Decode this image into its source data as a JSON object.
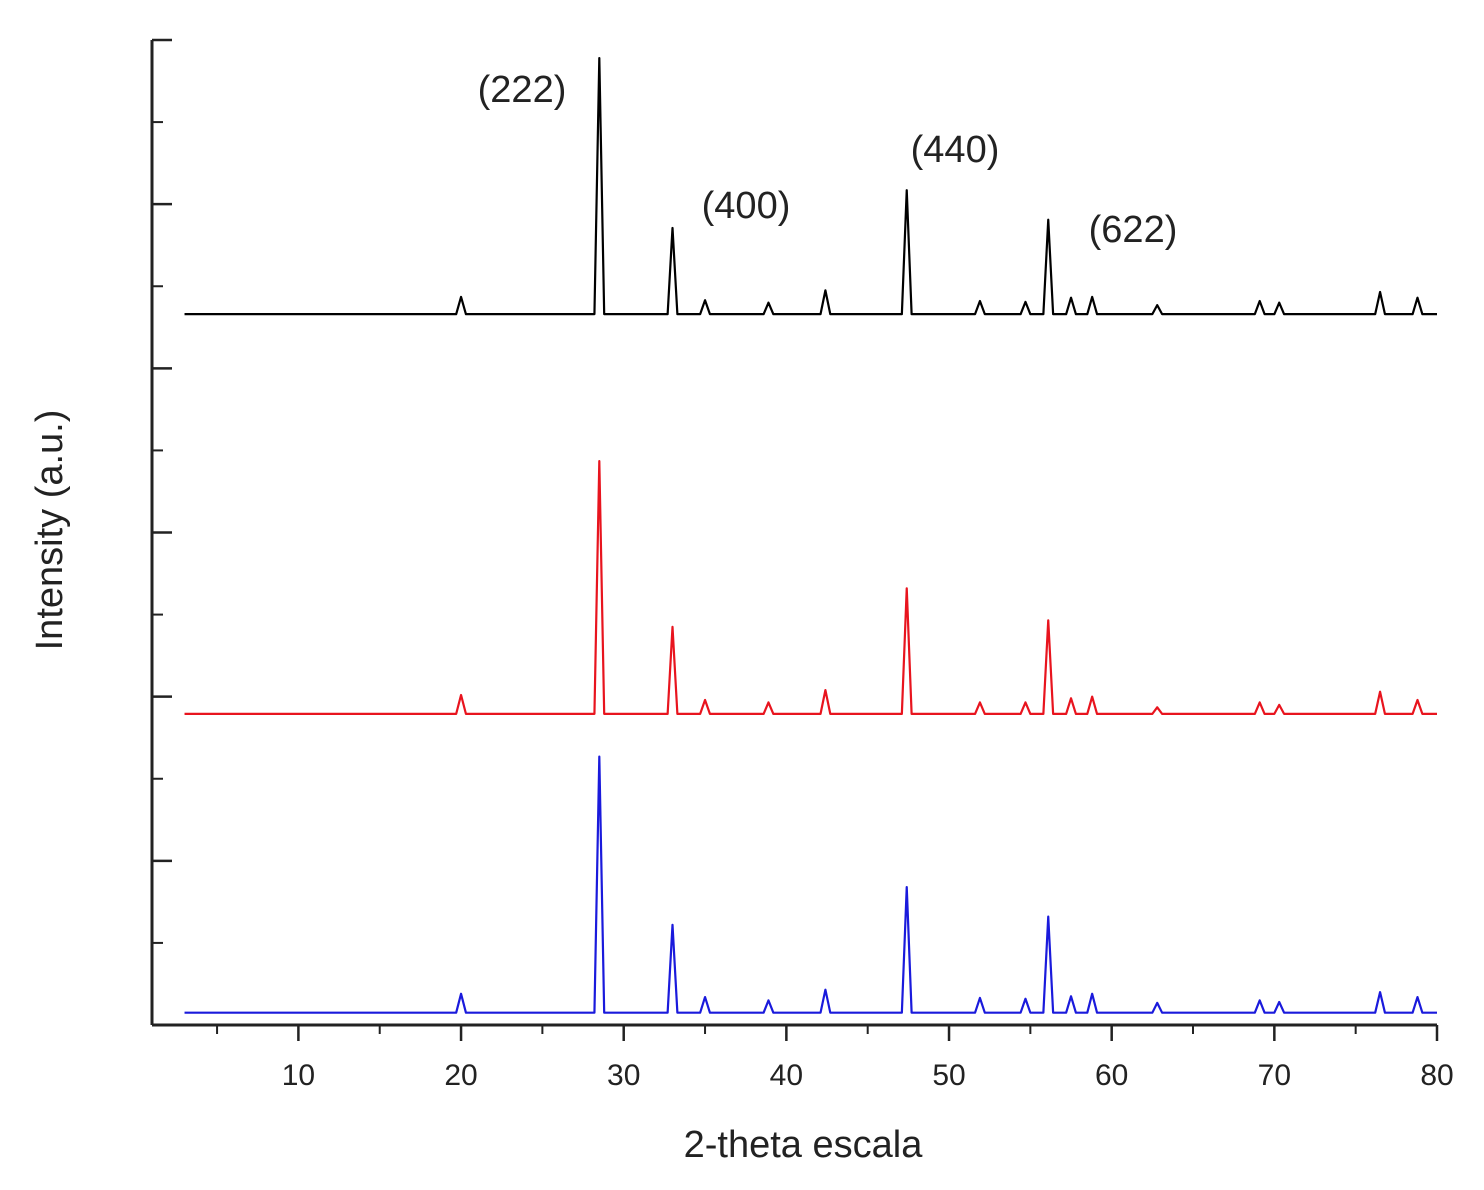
{
  "chart_data": {
    "type": "line",
    "xlabel": "2-theta escala",
    "ylabel": "Intensity (a.u.)",
    "xlim": [
      1,
      80
    ],
    "ylim": [
      0,
      12
    ],
    "xticks": [
      10,
      20,
      30,
      40,
      50,
      60,
      70,
      80
    ],
    "xminor": [
      5,
      15,
      25,
      35,
      45,
      55,
      65,
      75
    ],
    "yticks": [
      0,
      2,
      4,
      6,
      8,
      10,
      12
    ],
    "yminor": [
      1,
      3,
      5,
      7,
      9,
      11
    ],
    "x": [
      3,
      19.7,
      20,
      20.3,
      28.2,
      28.5,
      28.8,
      32.7,
      33,
      33.3,
      34.7,
      35,
      35.3,
      38.6,
      38.9,
      39.2,
      42.1,
      42.4,
      42.7,
      47.1,
      47.4,
      47.7,
      51.6,
      51.9,
      52.2,
      54.4,
      54.7,
      55,
      55.8,
      56.1,
      56.4,
      57.2,
      57.5,
      57.8,
      58.5,
      58.8,
      59.1,
      62.5,
      62.8,
      63.1,
      68.8,
      69.1,
      69.4,
      70,
      70.3,
      70.6,
      76.2,
      76.5,
      76.8,
      78.5,
      78.8,
      79.1,
      80
    ],
    "series": [
      {
        "color": "#000000",
        "values": [
          8.66,
          8.66,
          8.87,
          8.66,
          8.66,
          11.78,
          8.66,
          8.66,
          9.71,
          8.66,
          8.66,
          8.83,
          8.66,
          8.66,
          8.8,
          8.66,
          8.66,
          8.95,
          8.66,
          8.66,
          10.17,
          8.66,
          8.66,
          8.82,
          8.66,
          8.66,
          8.81,
          8.66,
          8.66,
          9.81,
          8.66,
          8.66,
          8.86,
          8.66,
          8.66,
          8.87,
          8.66,
          8.66,
          8.77,
          8.66,
          8.66,
          8.82,
          8.66,
          8.66,
          8.8,
          8.66,
          8.66,
          8.93,
          8.66,
          8.66,
          8.86,
          8.66,
          8.66
        ]
      },
      {
        "color": "#e8141e",
        "values": [
          3.79,
          3.79,
          4.02,
          3.79,
          3.79,
          6.87,
          3.79,
          3.79,
          4.85,
          3.79,
          3.79,
          3.96,
          3.79,
          3.79,
          3.93,
          3.79,
          3.79,
          4.08,
          3.79,
          3.79,
          5.32,
          3.79,
          3.79,
          3.93,
          3.79,
          3.79,
          3.93,
          3.79,
          3.79,
          4.93,
          3.79,
          3.79,
          3.98,
          3.79,
          3.79,
          4.0,
          3.79,
          3.79,
          3.87,
          3.79,
          3.79,
          3.93,
          3.79,
          3.79,
          3.9,
          3.79,
          3.79,
          4.06,
          3.79,
          3.79,
          3.96,
          3.79,
          3.79
        ]
      },
      {
        "color": "#1a1adc",
        "values": [
          0.15,
          0.15,
          0.38,
          0.15,
          0.15,
          3.27,
          0.15,
          0.15,
          1.22,
          0.15,
          0.15,
          0.34,
          0.15,
          0.15,
          0.3,
          0.15,
          0.15,
          0.43,
          0.15,
          0.15,
          1.68,
          0.15,
          0.15,
          0.33,
          0.15,
          0.15,
          0.32,
          0.15,
          0.15,
          1.32,
          0.15,
          0.15,
          0.35,
          0.15,
          0.15,
          0.38,
          0.15,
          0.15,
          0.27,
          0.15,
          0.15,
          0.3,
          0.15,
          0.15,
          0.28,
          0.15,
          0.15,
          0.4,
          0.15,
          0.15,
          0.34,
          0.15,
          0.15
        ]
      }
    ],
    "annotations": [
      "(222)",
      "(400)",
      "(440)",
      "(622)"
    ]
  }
}
